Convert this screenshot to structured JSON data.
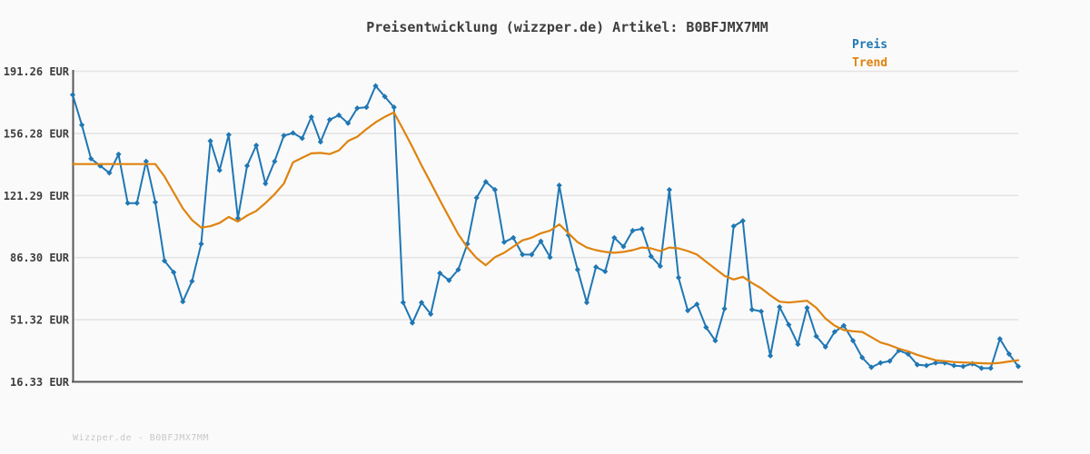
{
  "title": "Preisentwicklung (wizzper.de) Artikel: B0BFJMX7MM",
  "legend": {
    "price_label": "Preis",
    "trend_label": "Trend"
  },
  "watermark": "Wizzper.de - B0BFJMX7MM",
  "colors": {
    "price": "#1f77b4",
    "trend": "#df830e",
    "axis": "#58585a",
    "grid": "#e4e4e4",
    "label": "#3d3d3d",
    "watermark": "#c9c9c9",
    "background": "#fafafa"
  },
  "y_axis": {
    "unit": "EUR",
    "labels": [
      "191.26 EUR",
      "156.28 EUR",
      "121.29 EUR",
      "86.30 EUR",
      "51.32 EUR",
      "16.33 EUR"
    ],
    "values": [
      191.26,
      156.28,
      121.29,
      86.3,
      51.32,
      16.33
    ]
  },
  "chart_data": {
    "type": "line",
    "title": "Preisentwicklung (wizzper.de) Artikel: B0BFJMX7MM",
    "xlabel": "",
    "ylabel": "EUR",
    "ylim": [
      16.33,
      191.26
    ],
    "grid": true,
    "legend_position": "top-right",
    "x_tick_labels_visible": false,
    "series": [
      {
        "name": "Preis",
        "color": "#1f77b4",
        "marker": "diamond",
        "values": [
          178,
          161,
          142,
          138,
          134,
          144.5,
          117,
          117,
          140.5,
          117.5,
          84.5,
          78,
          61.5,
          73,
          94,
          152,
          135.5,
          155.5,
          108.5,
          138,
          149.5,
          128,
          140.5,
          155,
          156.5,
          153.5,
          165.5,
          151.5,
          164,
          166.5,
          162,
          170.5,
          171,
          183,
          177,
          171,
          61,
          49.5,
          61,
          54.5,
          77.5,
          73.5,
          79.5,
          94,
          120,
          129,
          124.5,
          95,
          97.5,
          88,
          88,
          95.5,
          86.5,
          127,
          99,
          79.5,
          61,
          81,
          78.5,
          97.5,
          92.5,
          101.5,
          102.5,
          87,
          81.5,
          124.5,
          75,
          56.5,
          60,
          47,
          39.5,
          57.5,
          104,
          107,
          57,
          56,
          31,
          58.5,
          48.5,
          37.5,
          58,
          42,
          36,
          44.5,
          48,
          39.5,
          30,
          24.5,
          27,
          28,
          34,
          32,
          26,
          25.5,
          27,
          27,
          25.5,
          25,
          26.5,
          24,
          24,
          40.5,
          32,
          25
        ]
      },
      {
        "name": "Trend",
        "color": "#df830e",
        "marker": "none",
        "values": [
          139,
          139,
          139,
          139,
          139,
          139,
          139,
          139,
          139,
          139,
          132,
          123,
          114,
          107.5,
          103.2,
          104,
          105.8,
          109.2,
          106.6,
          110,
          112.6,
          117,
          122,
          128,
          140,
          142.5,
          145,
          145.3,
          144.6,
          146.7,
          152,
          154.4,
          158.7,
          162.5,
          165.6,
          168.1,
          158.5,
          148.6,
          138.2,
          128.5,
          118.6,
          109,
          99.5,
          92,
          86,
          82,
          86.5,
          89,
          92.5,
          96,
          97.5,
          100,
          101.5,
          105,
          100,
          95,
          92,
          90.5,
          89.5,
          89,
          89.5,
          90.5,
          92,
          91.5,
          90,
          92,
          91.5,
          90,
          88,
          84,
          80,
          76,
          74,
          75.5,
          72,
          69,
          65,
          61.5,
          61,
          61.5,
          62,
          58,
          52,
          48,
          45.5,
          44.8,
          44.4,
          41.5,
          38.5,
          37,
          35,
          33.5,
          31.5,
          30,
          28.5,
          28,
          27.5,
          27.2,
          27,
          26.8,
          26.6,
          27,
          27.8,
          28.5
        ]
      }
    ]
  }
}
